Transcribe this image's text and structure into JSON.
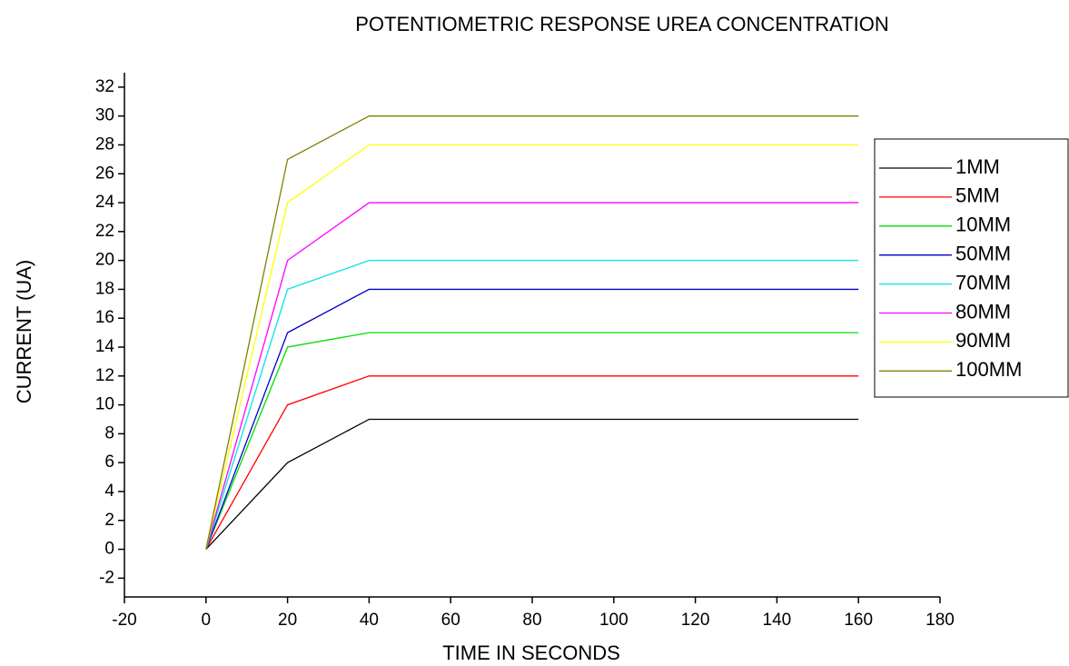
{
  "chart_data": {
    "type": "line",
    "title": "POTENTIOMETRIC RESPONSE UREA CONCENTRATION",
    "x_label": "TIME IN SECONDS",
    "y_label": "CURRENT (UA)",
    "x": [
      0,
      20,
      40,
      160
    ],
    "series": [
      {
        "name": "1MM",
        "color": "#000000",
        "values": [
          0,
          6,
          9,
          9
        ]
      },
      {
        "name": "5MM",
        "color": "#ff0000",
        "values": [
          0,
          10,
          12,
          12
        ]
      },
      {
        "name": "10MM",
        "color": "#00dd00",
        "values": [
          0,
          14,
          15,
          15
        ]
      },
      {
        "name": "50MM",
        "color": "#0000cc",
        "values": [
          0,
          15,
          18,
          18
        ]
      },
      {
        "name": "70MM",
        "color": "#00e5e5",
        "values": [
          0,
          18,
          20,
          20
        ]
      },
      {
        "name": "80MM",
        "color": "#ff00ff",
        "values": [
          0,
          20,
          24,
          24
        ]
      },
      {
        "name": "90MM",
        "color": "#ffff00",
        "values": [
          0,
          24,
          28,
          28
        ]
      },
      {
        "name": "100MM",
        "color": "#808000",
        "values": [
          0,
          27,
          30,
          30
        ]
      }
    ],
    "xlim": [
      -20,
      180
    ],
    "xticks": [
      -20,
      0,
      20,
      40,
      60,
      80,
      100,
      120,
      140,
      160,
      180
    ],
    "ylim": [
      -3.3,
      33
    ],
    "yticks": [
      -2,
      0,
      2,
      4,
      6,
      8,
      10,
      12,
      14,
      16,
      18,
      20,
      22,
      24,
      26,
      28,
      30,
      32
    ],
    "grid": false,
    "legend": "right"
  }
}
